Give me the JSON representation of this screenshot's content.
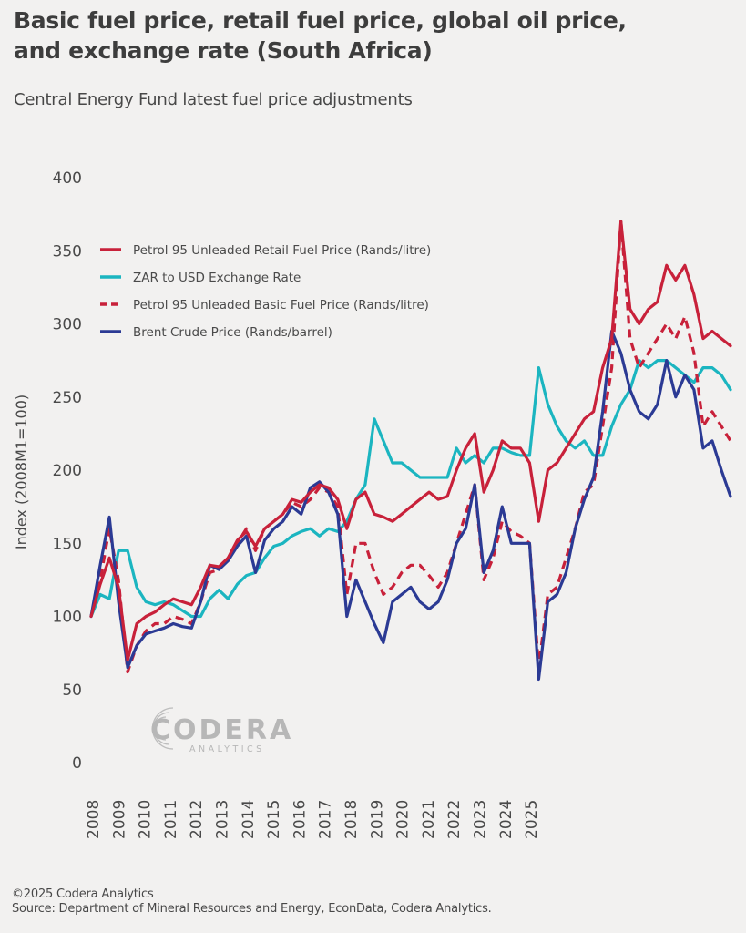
{
  "header": {
    "title_line1": "Basic fuel price, retail fuel price, global oil price,",
    "title_line2": "and exchange rate (South Africa)",
    "subtitle": "Central Energy Fund latest fuel price adjustments"
  },
  "footer": {
    "copyright": "©2025 Codera Analytics",
    "source": "Source: Department of Mineral Resources and Energy, EconData, Codera Analytics."
  },
  "logo": {
    "name": "CODERA",
    "tagline": "ANALYTICS"
  },
  "colors": {
    "red": "#c8213a",
    "teal": "#1bb5c0",
    "blue": "#2b3a94",
    "background": "#f2f1f0"
  },
  "chart_data": {
    "type": "line",
    "title": "Basic fuel price, retail fuel price, global oil price, and exchange rate (South Africa)",
    "subtitle": "Central Energy Fund latest fuel price adjustments",
    "xlabel": "",
    "ylabel": "Index (2008M1=100)",
    "ylim": [
      0,
      400
    ],
    "yticks": [
      0,
      50,
      100,
      150,
      200,
      250,
      300,
      350,
      400
    ],
    "xtick_labels": [
      "2008",
      "2009",
      "2010",
      "2011",
      "2012",
      "2013",
      "2014",
      "2015",
      "2016",
      "2017",
      "2018",
      "2019",
      "2020",
      "2021",
      "2022",
      "2023",
      "2024",
      "2025"
    ],
    "x_frequency": "quarterly",
    "x_start": "2008Q1",
    "x": [
      "2008Q1",
      "2008Q2",
      "2008Q3",
      "2008Q4",
      "2009Q1",
      "2009Q2",
      "2009Q3",
      "2009Q4",
      "2010Q1",
      "2010Q2",
      "2010Q3",
      "2010Q4",
      "2011Q1",
      "2011Q2",
      "2011Q3",
      "2011Q4",
      "2012Q1",
      "2012Q2",
      "2012Q3",
      "2012Q4",
      "2013Q1",
      "2013Q2",
      "2013Q3",
      "2013Q4",
      "2014Q1",
      "2014Q2",
      "2014Q3",
      "2014Q4",
      "2015Q1",
      "2015Q2",
      "2015Q3",
      "2015Q4",
      "2016Q1",
      "2016Q2",
      "2016Q3",
      "2016Q4",
      "2017Q1",
      "2017Q2",
      "2017Q3",
      "2017Q4",
      "2018Q1",
      "2018Q2",
      "2018Q3",
      "2018Q4",
      "2019Q1",
      "2019Q2",
      "2019Q3",
      "2019Q4",
      "2020Q1",
      "2020Q2",
      "2020Q3",
      "2020Q4",
      "2021Q1",
      "2021Q2",
      "2021Q3",
      "2021Q4",
      "2022Q1",
      "2022Q2",
      "2022Q3",
      "2022Q4",
      "2023Q1",
      "2023Q2",
      "2023Q3",
      "2023Q4",
      "2024Q1",
      "2024Q2",
      "2024Q3",
      "2024Q4",
      "2025Q1",
      "2025Q2",
      "2025Q3"
    ],
    "grid": false,
    "legend_position": "top-left",
    "series": [
      {
        "name": "Petrol 95 Unleaded Retail Fuel Price (Rands/litre)",
        "color": "#c8213a",
        "style": "solid",
        "values": [
          100,
          122,
          140,
          120,
          70,
          95,
          100,
          103,
          108,
          112,
          110,
          108,
          120,
          135,
          134,
          140,
          152,
          158,
          148,
          160,
          165,
          170,
          180,
          178,
          185,
          190,
          188,
          180,
          160,
          180,
          185,
          170,
          168,
          165,
          170,
          175,
          180,
          185,
          180,
          182,
          200,
          215,
          225,
          185,
          200,
          220,
          215,
          215,
          205,
          165,
          200,
          205,
          215,
          225,
          235,
          240,
          270,
          290,
          370,
          310,
          300,
          310,
          315,
          340,
          330,
          340,
          320,
          290,
          295,
          290,
          285
        ]
      },
      {
        "name": "ZAR to USD Exchange Rate",
        "color": "#1bb5c0",
        "style": "solid",
        "values": [
          100,
          115,
          112,
          145,
          145,
          120,
          110,
          108,
          110,
          108,
          104,
          100,
          100,
          112,
          118,
          112,
          122,
          128,
          130,
          140,
          148,
          150,
          155,
          158,
          160,
          155,
          160,
          158,
          165,
          180,
          190,
          235,
          220,
          205,
          205,
          200,
          195,
          195,
          195,
          195,
          215,
          205,
          210,
          205,
          215,
          215,
          212,
          210,
          210,
          270,
          245,
          230,
          220,
          215,
          220,
          210,
          210,
          230,
          245,
          255,
          275,
          270,
          275,
          275,
          270,
          265,
          260,
          270,
          270,
          265,
          255
        ]
      },
      {
        "name": "Petrol 95 Unleaded Basic Fuel Price (Rands/litre)",
        "color": "#c8213a",
        "style": "dashed",
        "values": [
          100,
          125,
          160,
          125,
          62,
          80,
          90,
          95,
          95,
          100,
          98,
          95,
          110,
          130,
          132,
          140,
          150,
          160,
          145,
          160,
          165,
          170,
          178,
          175,
          180,
          188,
          185,
          175,
          115,
          150,
          150,
          130,
          115,
          120,
          130,
          135,
          135,
          128,
          120,
          130,
          150,
          170,
          190,
          125,
          140,
          165,
          158,
          155,
          150,
          65,
          115,
          120,
          140,
          160,
          185,
          190,
          230,
          270,
          370,
          290,
          270,
          280,
          290,
          300,
          290,
          305,
          280,
          230,
          240,
          230,
          220
        ]
      },
      {
        "name": "Brent Crude Price (Rands/barrel)",
        "color": "#2b3a94",
        "style": "solid",
        "values": [
          100,
          135,
          168,
          110,
          65,
          80,
          88,
          90,
          92,
          95,
          93,
          92,
          110,
          135,
          132,
          138,
          148,
          155,
          130,
          152,
          160,
          165,
          175,
          170,
          188,
          192,
          185,
          170,
          100,
          125,
          110,
          95,
          82,
          110,
          115,
          120,
          110,
          105,
          110,
          125,
          150,
          160,
          190,
          130,
          145,
          175,
          150,
          150,
          150,
          57,
          110,
          115,
          130,
          160,
          180,
          195,
          240,
          295,
          280,
          255,
          240,
          235,
          245,
          275,
          250,
          265,
          255,
          215,
          220,
          200,
          182
        ]
      }
    ]
  }
}
